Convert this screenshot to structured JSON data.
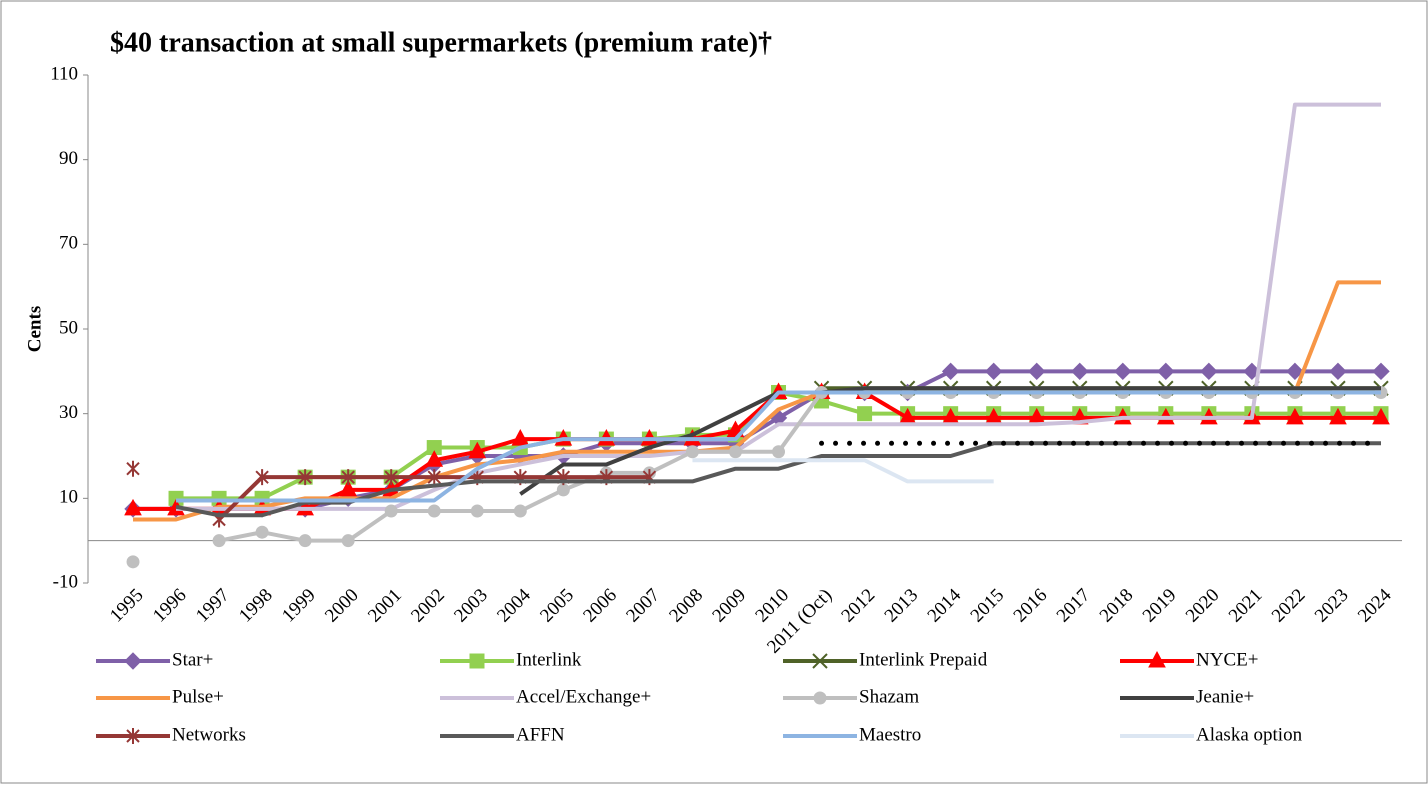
{
  "chart_data": {
    "type": "line",
    "title": "$40 transaction at small supermarkets (premium rate)†",
    "y_label": "Cents",
    "categories": [
      "1995",
      "1996",
      "1997",
      "1998",
      "1999",
      "2000",
      "2001",
      "2002",
      "2003",
      "2004",
      "2005",
      "2006",
      "2007",
      "2008",
      "2009",
      "2010",
      "2011 (Oct)",
      "2012",
      "2013",
      "2014",
      "2015",
      "2016",
      "2017",
      "2018",
      "2019",
      "2020",
      "2021",
      "2022",
      "2023",
      "2024"
    ],
    "ylim": [
      -10,
      110
    ],
    "yticks": [
      -10,
      10,
      30,
      50,
      70,
      90,
      110
    ],
    "grid": false,
    "series": [
      {
        "name": "Star+",
        "color": "#7f60a8",
        "marker": "diamond",
        "values": [
          7.5,
          7.5,
          7.5,
          7.5,
          7.5,
          10,
          12,
          18,
          20,
          20,
          20,
          23,
          23,
          23,
          23,
          29,
          35,
          35,
          35,
          40,
          40,
          40,
          40,
          40,
          40,
          40,
          40,
          40,
          40,
          40
        ]
      },
      {
        "name": "Interlink",
        "color": "#92d050",
        "marker": "square",
        "values": [
          null,
          10,
          10,
          10,
          15,
          15,
          15,
          22,
          22,
          22,
          24,
          24,
          24,
          25,
          25,
          35,
          33,
          30,
          30,
          30,
          30,
          30,
          30,
          30,
          30,
          30,
          30,
          30,
          30,
          30
        ]
      },
      {
        "name": "Interlink Prepaid",
        "color": "#4f6228",
        "marker": "x",
        "values": [
          null,
          null,
          null,
          null,
          null,
          null,
          null,
          null,
          null,
          null,
          null,
          null,
          null,
          null,
          null,
          null,
          36,
          36,
          36,
          36,
          36,
          36,
          36,
          36,
          36,
          36,
          36,
          36,
          36,
          36
        ]
      },
      {
        "name": "NYCE+",
        "color": "#ff0000",
        "marker": "triangle",
        "values": [
          7.5,
          7.5,
          7.5,
          7.5,
          7.5,
          12,
          12,
          19,
          21,
          24,
          24,
          24,
          24,
          24,
          26,
          35,
          35,
          35,
          29,
          29,
          29,
          29,
          29,
          29,
          29,
          29,
          29,
          29,
          29,
          29
        ]
      },
      {
        "name": "Pulse+",
        "color": "#f79646",
        "marker": "none",
        "values": [
          5,
          5,
          8,
          8,
          10,
          10,
          10,
          15,
          18,
          19,
          21,
          21,
          21,
          21,
          22,
          31,
          35,
          35,
          35,
          35,
          35,
          35,
          35,
          35,
          35,
          35,
          35,
          35,
          61,
          61
        ]
      },
      {
        "name": "Accel/Exchange+",
        "color": "#ccc0da",
        "marker": "none",
        "values": [
          null,
          7.5,
          7.5,
          7.5,
          7.5,
          7.5,
          7.5,
          12,
          16,
          18,
          20,
          20,
          20,
          21,
          21,
          27.5,
          27.5,
          27.5,
          27.5,
          27.5,
          27.5,
          27.5,
          28,
          29,
          29,
          29,
          29,
          103,
          103,
          103
        ]
      },
      {
        "name": "Shazam",
        "color": "#bfbfbf",
        "marker": "circle",
        "values": [
          -5,
          null,
          0,
          2,
          0,
          0,
          7,
          7,
          7,
          7,
          12,
          16,
          16,
          21,
          21,
          21,
          35,
          35,
          35,
          35,
          35,
          35,
          35,
          35,
          35,
          35,
          35,
          35,
          35,
          35
        ]
      },
      {
        "name": "Jeanie+",
        "color": "#404040",
        "marker": "none",
        "values": [
          null,
          null,
          null,
          null,
          null,
          null,
          null,
          null,
          null,
          11,
          18,
          18,
          22,
          25,
          30,
          35,
          35,
          36,
          36,
          36,
          36,
          36,
          36,
          36,
          36,
          36,
          36,
          36,
          36,
          36
        ]
      },
      {
        "name": "Networks",
        "color": "#953735",
        "marker": "star",
        "values": [
          17,
          null,
          5,
          15,
          15,
          15,
          15,
          15,
          15,
          15,
          15,
          15,
          15,
          null,
          null,
          null,
          null,
          null,
          null,
          null,
          null,
          null,
          null,
          null,
          null,
          null,
          null,
          null,
          null,
          null
        ]
      },
      {
        "name": "AFFN",
        "color": "#595959",
        "marker": "none",
        "values": [
          null,
          8,
          6,
          6,
          9,
          9,
          12,
          13,
          14,
          14,
          14,
          14,
          14,
          14,
          17,
          17,
          20,
          20,
          20,
          20,
          23,
          23,
          23,
          23,
          23,
          23,
          23,
          23,
          23,
          23
        ]
      },
      {
        "name": "Maestro",
        "color": "#8db4e2",
        "marker": "none",
        "values": [
          null,
          9.5,
          9.5,
          9.5,
          9.5,
          9.5,
          9.5,
          9.5,
          17,
          22,
          24,
          24,
          24,
          24,
          24,
          35,
          35,
          35,
          35,
          35,
          35,
          35,
          35,
          35,
          35,
          35,
          35,
          35,
          35,
          35
        ]
      },
      {
        "name": "Alaska option",
        "color": "#dce6f2",
        "marker": "none",
        "values": [
          null,
          null,
          null,
          null,
          null,
          null,
          null,
          null,
          null,
          null,
          null,
          null,
          null,
          19,
          19,
          19,
          19,
          19,
          14,
          14,
          14,
          null,
          null,
          null,
          null,
          null,
          null,
          null,
          null,
          null
        ]
      },
      {
        "color": "#000000",
        "marker": "none",
        "style": "dotted",
        "values": [
          null,
          null,
          null,
          null,
          null,
          null,
          null,
          null,
          null,
          null,
          null,
          null,
          null,
          null,
          null,
          null,
          23,
          23,
          23,
          23,
          23,
          23,
          23,
          23,
          23,
          23,
          23,
          23,
          23,
          23
        ]
      }
    ]
  }
}
